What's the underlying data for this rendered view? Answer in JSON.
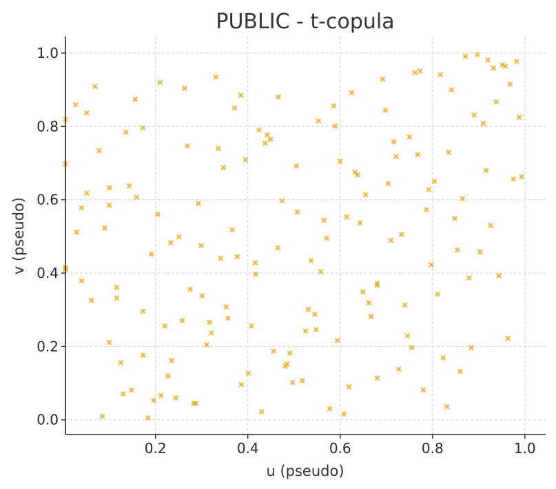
{
  "chart_data": {
    "type": "scatter",
    "title": "PUBLIC - t-copula",
    "xlabel": "u (pseudo)",
    "ylabel": "v (pseudo)",
    "xlim": [
      0.005,
      1.045
    ],
    "ylim": [
      -0.04,
      1.045
    ],
    "xticks": [
      0.2,
      0.4,
      0.6,
      0.8,
      1.0
    ],
    "xtick_labels": [
      "0.2",
      "0.4",
      "0.6",
      "0.8",
      "1.0"
    ],
    "yticks": [
      0.0,
      0.2,
      0.4,
      0.6,
      0.8,
      1.0
    ],
    "ytick_labels": [
      "0.0",
      "0.2",
      "0.4",
      "0.6",
      "0.8",
      "1.0"
    ],
    "grid": true,
    "marker": "x",
    "marker_color": "#E8A820",
    "marker_opacity": 0.7,
    "series": [
      {
        "points": [
          [
            0.005,
            0.819
          ],
          [
            0.005,
            0.698
          ],
          [
            0.005,
            0.415
          ],
          [
            0.005,
            0.41
          ],
          [
            0.027,
            0.859
          ],
          [
            0.029,
            0.512
          ],
          [
            0.04,
            0.578
          ],
          [
            0.04,
            0.379
          ],
          [
            0.051,
            0.837
          ],
          [
            0.051,
            0.618
          ],
          [
            0.061,
            0.326
          ],
          [
            0.069,
            0.909
          ],
          [
            0.078,
            0.734
          ],
          [
            0.085,
            0.01
          ],
          [
            0.09,
            0.523
          ],
          [
            0.1,
            0.633
          ],
          [
            0.1,
            0.585
          ],
          [
            0.1,
            0.211
          ],
          [
            0.116,
            0.361
          ],
          [
            0.116,
            0.332
          ],
          [
            0.125,
            0.156
          ],
          [
            0.13,
            0.071
          ],
          [
            0.136,
            0.784
          ],
          [
            0.143,
            0.638
          ],
          [
            0.148,
            0.081
          ],
          [
            0.156,
            0.874
          ],
          [
            0.159,
            0.607
          ],
          [
            0.173,
            0.796
          ],
          [
            0.173,
            0.296
          ],
          [
            0.173,
            0.176
          ],
          [
            0.184,
            0.005
          ],
          [
            0.191,
            0.452
          ],
          [
            0.196,
            0.053
          ],
          [
            0.205,
            0.56
          ],
          [
            0.21,
            0.92
          ],
          [
            0.212,
            0.066
          ],
          [
            0.22,
            0.256
          ],
          [
            0.227,
            0.12
          ],
          [
            0.233,
            0.483
          ],
          [
            0.235,
            0.162
          ],
          [
            0.244,
            0.06
          ],
          [
            0.251,
            0.499
          ],
          [
            0.258,
            0.271
          ],
          [
            0.263,
            0.904
          ],
          [
            0.269,
            0.747
          ],
          [
            0.275,
            0.356
          ],
          [
            0.283,
            0.045
          ],
          [
            0.288,
            0.045
          ],
          [
            0.293,
            0.59
          ],
          [
            0.299,
            0.475
          ],
          [
            0.301,
            0.338
          ],
          [
            0.311,
            0.205
          ],
          [
            0.317,
            0.266
          ],
          [
            0.321,
            0.237
          ],
          [
            0.331,
            0.935
          ],
          [
            0.336,
            0.74
          ],
          [
            0.341,
            0.44
          ],
          [
            0.347,
            0.688
          ],
          [
            0.353,
            0.308
          ],
          [
            0.357,
            0.277
          ],
          [
            0.366,
            0.518
          ],
          [
            0.371,
            0.85
          ],
          [
            0.377,
            0.445
          ],
          [
            0.385,
            0.885
          ],
          [
            0.386,
            0.096
          ],
          [
            0.395,
            0.709
          ],
          [
            0.401,
            0.127
          ],
          [
            0.408,
            0.256
          ],
          [
            0.416,
            0.428
          ],
          [
            0.417,
            0.397
          ],
          [
            0.424,
            0.79
          ],
          [
            0.43,
            0.022
          ],
          [
            0.437,
            0.754
          ],
          [
            0.442,
            0.777
          ],
          [
            0.449,
            0.765
          ],
          [
            0.456,
            0.187
          ],
          [
            0.465,
            0.469
          ],
          [
            0.466,
            0.88
          ],
          [
            0.474,
            0.597
          ],
          [
            0.481,
            0.146
          ],
          [
            0.485,
            0.152
          ],
          [
            0.491,
            0.182
          ],
          [
            0.497,
            0.102
          ],
          [
            0.505,
            0.692
          ],
          [
            0.507,
            0.567
          ],
          [
            0.518,
            0.107
          ],
          [
            0.525,
            0.242
          ],
          [
            0.531,
            0.301
          ],
          [
            0.537,
            0.434
          ],
          [
            0.545,
            0.288
          ],
          [
            0.548,
            0.246
          ],
          [
            0.553,
            0.815
          ],
          [
            0.558,
            0.404
          ],
          [
            0.565,
            0.544
          ],
          [
            0.571,
            0.495
          ],
          [
            0.577,
            0.03
          ],
          [
            0.586,
            0.856
          ],
          [
            0.589,
            0.801
          ],
          [
            0.594,
            0.216
          ],
          [
            0.6,
            0.705
          ],
          [
            0.608,
            0.016
          ],
          [
            0.614,
            0.553
          ],
          [
            0.619,
            0.09
          ],
          [
            0.625,
            0.892
          ],
          [
            0.632,
            0.675
          ],
          [
            0.638,
            0.668
          ],
          [
            0.643,
            0.537
          ],
          [
            0.649,
            0.349
          ],
          [
            0.655,
            0.614
          ],
          [
            0.662,
            0.319
          ],
          [
            0.667,
            0.282
          ],
          [
            0.68,
            0.372
          ],
          [
            0.68,
            0.367
          ],
          [
            0.68,
            0.114
          ],
          [
            0.692,
            0.929
          ],
          [
            0.698,
            0.844
          ],
          [
            0.704,
            0.644
          ],
          [
            0.71,
            0.489
          ],
          [
            0.716,
            0.758
          ],
          [
            0.721,
            0.718
          ],
          [
            0.727,
            0.138
          ],
          [
            0.733,
            0.506
          ],
          [
            0.74,
            0.313
          ],
          [
            0.746,
            0.229
          ],
          [
            0.75,
            0.771
          ],
          [
            0.755,
            0.197
          ],
          [
            0.762,
            0.947
          ],
          [
            0.768,
            0.723
          ],
          [
            0.773,
            0.951
          ],
          [
            0.78,
            0.081
          ],
          [
            0.787,
            0.573
          ],
          [
            0.792,
            0.628
          ],
          [
            0.797,
            0.423
          ],
          [
            0.804,
            0.65
          ],
          [
            0.811,
            0.343
          ],
          [
            0.817,
            0.941
          ],
          [
            0.823,
            0.169
          ],
          [
            0.831,
            0.036
          ],
          [
            0.835,
            0.729
          ],
          [
            0.841,
            0.9
          ],
          [
            0.848,
            0.549
          ],
          [
            0.854,
            0.463
          ],
          [
            0.86,
            0.132
          ],
          [
            0.865,
            0.603
          ],
          [
            0.871,
            0.991
          ],
          [
            0.879,
            0.387
          ],
          [
            0.884,
            0.197
          ],
          [
            0.89,
            0.831
          ],
          [
            0.897,
            0.996
          ],
          [
            0.903,
            0.458
          ],
          [
            0.91,
            0.808
          ],
          [
            0.916,
            0.68
          ],
          [
            0.92,
            0.981
          ],
          [
            0.926,
            0.53
          ],
          [
            0.932,
            0.959
          ],
          [
            0.938,
            0.867
          ],
          [
            0.944,
            0.393
          ],
          [
            0.951,
            0.968
          ],
          [
            0.958,
            0.964
          ],
          [
            0.963,
            0.222
          ],
          [
            0.968,
            0.915
          ],
          [
            0.975,
            0.657
          ],
          [
            0.982,
            0.977
          ],
          [
            0.988,
            0.825
          ],
          [
            0.993,
            0.663
          ]
        ]
      }
    ]
  }
}
